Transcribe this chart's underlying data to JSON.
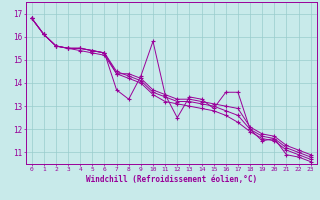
{
  "xlabel": "Windchill (Refroidissement éolien,°C)",
  "xlim": [
    -0.5,
    23.5
  ],
  "ylim": [
    10.5,
    17.5
  ],
  "yticks": [
    11,
    12,
    13,
    14,
    15,
    16,
    17
  ],
  "xticks": [
    0,
    1,
    2,
    3,
    4,
    5,
    6,
    7,
    8,
    9,
    10,
    11,
    12,
    13,
    14,
    15,
    16,
    17,
    18,
    19,
    20,
    21,
    22,
    23
  ],
  "background_color": "#c8eaea",
  "line_color": "#990099",
  "grid_color": "#99cccc",
  "series": [
    [
      16.8,
      16.1,
      15.6,
      15.5,
      15.5,
      15.4,
      15.3,
      13.7,
      13.3,
      14.3,
      15.8,
      13.5,
      12.5,
      13.4,
      13.3,
      12.9,
      13.6,
      13.6,
      12.0,
      11.5,
      11.6,
      10.9,
      10.8,
      10.6
    ],
    [
      16.8,
      16.1,
      15.6,
      15.5,
      15.5,
      15.4,
      15.3,
      14.4,
      14.4,
      14.2,
      13.7,
      13.5,
      13.3,
      13.3,
      13.2,
      13.1,
      13.0,
      12.9,
      12.1,
      11.8,
      11.7,
      11.3,
      11.1,
      10.9
    ],
    [
      16.8,
      16.1,
      15.6,
      15.5,
      15.5,
      15.4,
      15.3,
      14.5,
      14.3,
      14.1,
      13.6,
      13.4,
      13.2,
      13.2,
      13.1,
      13.0,
      12.8,
      12.6,
      12.0,
      11.7,
      11.6,
      11.2,
      11.0,
      10.8
    ],
    [
      16.8,
      16.1,
      15.6,
      15.5,
      15.4,
      15.3,
      15.2,
      14.4,
      14.2,
      14.0,
      13.5,
      13.2,
      13.1,
      13.0,
      12.9,
      12.8,
      12.6,
      12.3,
      11.9,
      11.6,
      11.5,
      11.1,
      10.9,
      10.7
    ]
  ]
}
